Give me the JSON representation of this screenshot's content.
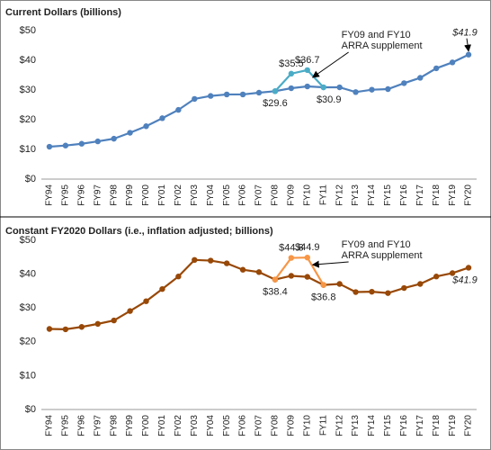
{
  "chart_data": [
    {
      "type": "line",
      "title": "Current Dollars (billions)",
      "categories": [
        "FY94",
        "FY95",
        "FY96",
        "FY97",
        "FY98",
        "FY99",
        "FY00",
        "FY01",
        "FY02",
        "FY03",
        "FY04",
        "FY05",
        "FY06",
        "FY07",
        "FY08",
        "FY09",
        "FY10",
        "FY11",
        "FY12",
        "FY13",
        "FY14",
        "FY15",
        "FY16",
        "FY17",
        "FY18",
        "FY19",
        "FY20"
      ],
      "series": [
        {
          "color": "#4f81bd",
          "values": [
            10.9,
            11.3,
            11.9,
            12.7,
            13.6,
            15.6,
            17.8,
            20.5,
            23.3,
            27.0,
            28.0,
            28.5,
            28.5,
            29.1,
            29.6,
            30.6,
            31.2,
            30.9,
            30.9,
            29.3,
            30.1,
            30.3,
            32.3,
            34.1,
            37.3,
            39.3,
            41.9
          ],
          "value_labels": [
            null,
            null,
            null,
            null,
            null,
            null,
            null,
            null,
            null,
            null,
            null,
            null,
            null,
            null,
            "$29.6",
            null,
            null,
            "$30.9",
            null,
            null,
            null,
            null,
            null,
            null,
            null,
            null,
            "$41.9"
          ]
        },
        {
          "color": "#4bacc6",
          "values": [
            null,
            null,
            null,
            null,
            null,
            null,
            null,
            null,
            null,
            null,
            null,
            null,
            null,
            null,
            29.6,
            35.5,
            36.7,
            30.9,
            null,
            null,
            null,
            null,
            null,
            null,
            null,
            null,
            null
          ],
          "value_labels": [
            null,
            null,
            null,
            null,
            null,
            null,
            null,
            null,
            null,
            null,
            null,
            null,
            null,
            null,
            null,
            "$35.5",
            "$36.7",
            null,
            null,
            null,
            null,
            null,
            null,
            null,
            null,
            null,
            null
          ]
        }
      ],
      "annotation": [
        "FY09 and FY10",
        "ARRA supplement"
      ],
      "ylim": [
        0,
        50
      ],
      "yticks": [
        {
          "value": 0,
          "label": "$0"
        },
        {
          "value": 10,
          "label": "$10"
        },
        {
          "value": 20,
          "label": "$20"
        },
        {
          "value": 30,
          "label": "$30"
        },
        {
          "value": 40,
          "label": "$40"
        },
        {
          "value": 50,
          "label": "$50"
        }
      ],
      "grid": false
    },
    {
      "type": "line",
      "title": "Constant FY2020 Dollars (i.e., inflation adjusted; billions)",
      "categories": [
        "FY94",
        "FY95",
        "FY96",
        "FY97",
        "FY98",
        "FY99",
        "FY00",
        "FY01",
        "FY02",
        "FY03",
        "FY04",
        "FY05",
        "FY06",
        "FY07",
        "FY08",
        "FY09",
        "FY10",
        "FY11",
        "FY12",
        "FY13",
        "FY14",
        "FY15",
        "FY16",
        "FY17",
        "FY18",
        "FY19",
        "FY20"
      ],
      "series": [
        {
          "color": "#984807",
          "values": [
            23.8,
            23.7,
            24.4,
            25.3,
            26.3,
            29.1,
            32.0,
            35.6,
            39.3,
            44.2,
            44.0,
            43.2,
            41.3,
            40.6,
            38.4,
            39.5,
            39.2,
            36.8,
            37.1,
            34.7,
            34.8,
            34.4,
            35.9,
            37.1,
            39.3,
            40.3,
            41.9
          ],
          "value_labels": [
            null,
            null,
            null,
            null,
            null,
            null,
            null,
            null,
            null,
            null,
            null,
            null,
            null,
            null,
            "$38.4",
            null,
            null,
            "$36.8",
            null,
            null,
            null,
            null,
            null,
            null,
            null,
            null,
            "$41.9"
          ]
        },
        {
          "color": "#f79646",
          "values": [
            null,
            null,
            null,
            null,
            null,
            null,
            null,
            null,
            null,
            null,
            null,
            null,
            null,
            null,
            38.4,
            44.8,
            44.9,
            36.8,
            null,
            null,
            null,
            null,
            null,
            null,
            null,
            null,
            null
          ],
          "value_labels": [
            null,
            null,
            null,
            null,
            null,
            null,
            null,
            null,
            null,
            null,
            null,
            null,
            null,
            null,
            null,
            "$44.8",
            "$44.9",
            null,
            null,
            null,
            null,
            null,
            null,
            null,
            null,
            null,
            null
          ]
        }
      ],
      "annotation": [
        "FY09 and FY10",
        "ARRA supplement"
      ],
      "ylim": [
        0,
        50
      ],
      "yticks": [
        {
          "value": 0,
          "label": "$0"
        },
        {
          "value": 10,
          "label": "$10"
        },
        {
          "value": 20,
          "label": "$20"
        },
        {
          "value": 30,
          "label": "$30"
        },
        {
          "value": 40,
          "label": "$40"
        },
        {
          "value": 50,
          "label": "$50"
        }
      ],
      "grid": false
    }
  ]
}
